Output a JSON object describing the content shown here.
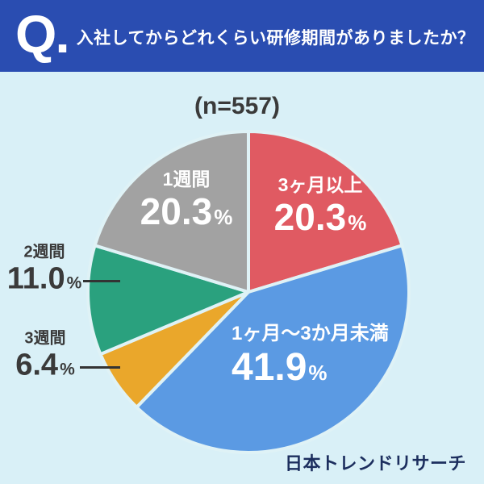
{
  "header": {
    "q_label": "Q.",
    "question": "入社してからどれくらい研修期間がありましたか？"
  },
  "chart_data": {
    "type": "pie",
    "title": "(n=557)",
    "sample_size": 557,
    "direction": "clockwise",
    "start_angle_deg": 0,
    "percent_sign": "%",
    "gap_color": "#dff2f6",
    "slices": [
      {
        "label": "3ヶ月以上",
        "value": 20.3,
        "display": "20.3",
        "color": "#e05a62",
        "label_position": "inside"
      },
      {
        "label": "1ヶ月〜3か月未満",
        "value": 41.9,
        "display": "41.9",
        "color": "#5b9ae3",
        "label_position": "inside"
      },
      {
        "label": "3週間",
        "value": 6.4,
        "display": "6.4",
        "color": "#eaa72b",
        "label_position": "outside"
      },
      {
        "label": "2週間",
        "value": 11.0,
        "display": "11.0",
        "color": "#2aa17e",
        "label_position": "outside"
      },
      {
        "label": "1週間",
        "value": 20.3,
        "display": "20.3",
        "color": "#a2a2a2",
        "label_position": "inside"
      }
    ]
  },
  "footer": {
    "source": "日本トレンドリサーチ"
  },
  "colors": {
    "header_bg": "#2a4db1",
    "background": "#d9f0f7",
    "text_dark": "#3a3a3a",
    "text_navy": "#1c2e5e",
    "text_white": "#ffffff",
    "leader_line": "#333333"
  }
}
